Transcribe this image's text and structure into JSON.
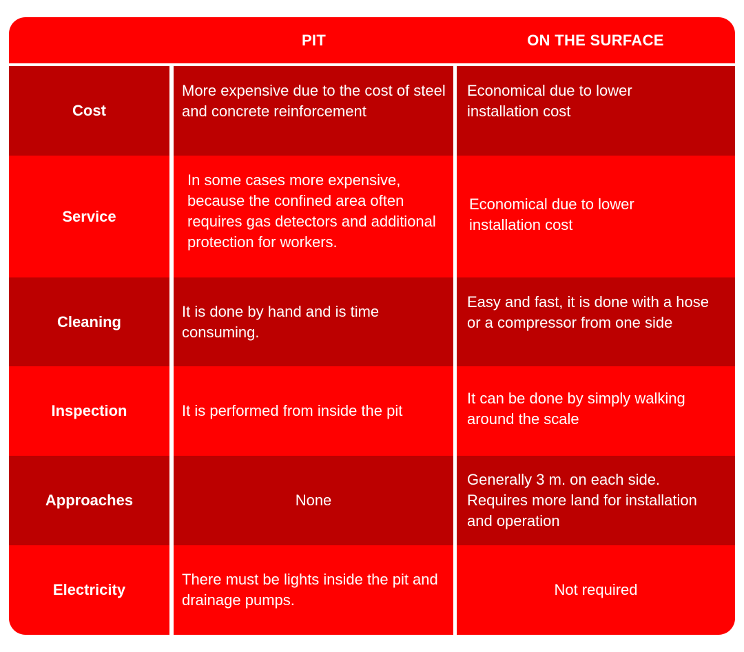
{
  "header": {
    "col_pit": "PIT",
    "col_surface": "ON THE SURFACE"
  },
  "rows": [
    {
      "label": "Cost",
      "pit": "More expensive due to the cost of steel and concrete reinforcement",
      "surface_line1": "Economical due to lower",
      "surface_line2": "installation cost"
    },
    {
      "label": "Service",
      "pit": "In some cases more expensive, because the confined area often requires gas detectors and additional protection for workers.",
      "surface_line1": "Economical due to lower",
      "surface_line2": "installation cost"
    },
    {
      "label": "Cleaning",
      "pit": "It is done by hand and is time consuming.",
      "surface_line1": "Easy and fast, it is done with a hose",
      "surface_line2": "or a compressor from one side"
    },
    {
      "label": "Inspection",
      "pit": "It is performed from inside the pit",
      "surface_line1": "It can be done by simply walking",
      "surface_line2": "around the scale"
    },
    {
      "label": "Approaches",
      "pit": "None",
      "surface_line1": "Generally 3 m. on each side.",
      "surface_line2": "Requires more land for installation",
      "surface_line3": "and operation"
    },
    {
      "label": "Electricity",
      "pit": "There must be lights inside the pit and drainage pumps.",
      "surface": "Not required"
    }
  ],
  "colors": {
    "primary_red": "#ff0000",
    "dark_red": "#bc0000",
    "divider": "#ffffff"
  }
}
